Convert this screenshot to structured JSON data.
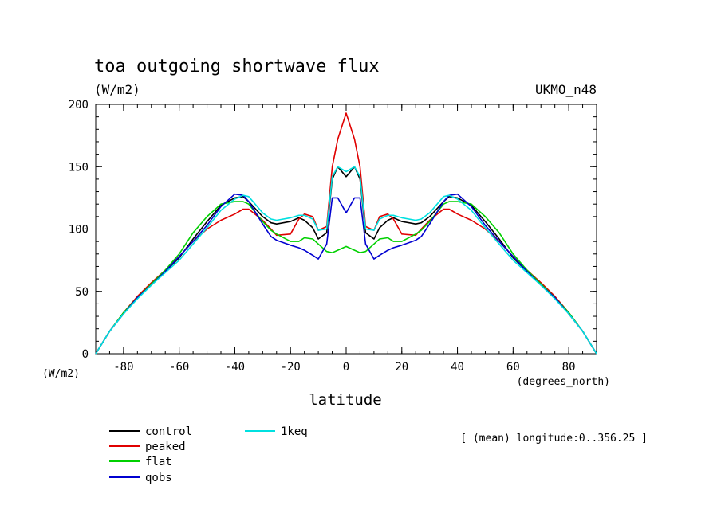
{
  "header": {
    "title": "toa outgoing shortwave flux",
    "units": "(W/m2)",
    "model": "UKMO_n48"
  },
  "footer": {
    "yunit_label": "(W/m2)",
    "xunit_label": "(degrees_north)",
    "xlabel": "latitude",
    "note": "[ (mean) longitude:0..356.25 ]"
  },
  "chart_data": {
    "type": "line",
    "xlabel": "latitude",
    "ylabel": "(W/m2)",
    "xlim": [
      -90,
      90
    ],
    "ylim": [
      0,
      200
    ],
    "xticks": [
      -80,
      -60,
      -40,
      -20,
      0,
      20,
      40,
      60,
      80
    ],
    "yticks": [
      0,
      50,
      100,
      150,
      200
    ],
    "x": [
      -90,
      -85,
      -80,
      -75,
      -70,
      -65,
      -60,
      -55,
      -50,
      -45,
      -40,
      -37,
      -35,
      -30,
      -27,
      -25,
      -20,
      -17,
      -15,
      -12,
      -10,
      -7,
      -5,
      -3,
      0,
      3,
      5,
      7,
      10,
      12,
      15,
      17,
      20,
      25,
      27,
      30,
      35,
      37,
      40,
      45,
      50,
      55,
      60,
      65,
      70,
      75,
      80,
      85,
      90
    ],
    "series": [
      {
        "name": "control",
        "color": "#000000",
        "values": [
          0,
          18,
          32,
          45,
          56,
          66,
          77,
          92,
          106,
          119,
          125,
          126,
          122,
          110,
          105,
          104,
          106,
          109,
          107,
          101,
          92,
          97,
          140,
          150,
          142,
          150,
          140,
          97,
          92,
          101,
          107,
          109,
          106,
          104,
          105,
          110,
          122,
          126,
          125,
          119,
          106,
          92,
          77,
          66,
          56,
          45,
          32,
          18,
          0
        ]
      },
      {
        "name": "peaked",
        "color": "#e00000",
        "values": [
          0,
          18,
          33,
          46,
          57,
          67,
          78,
          90,
          100,
          107,
          112,
          116,
          116,
          107,
          100,
          95,
          96,
          108,
          112,
          110,
          99,
          102,
          150,
          172,
          193,
          172,
          150,
          102,
          99,
          110,
          112,
          108,
          96,
          95,
          100,
          107,
          116,
          116,
          112,
          107,
          100,
          90,
          78,
          67,
          57,
          46,
          33,
          18,
          0
        ]
      },
      {
        "name": "flat",
        "color": "#00d000",
        "values": [
          0,
          18,
          33,
          45,
          56,
          67,
          80,
          97,
          110,
          120,
          122,
          122,
          120,
          106,
          99,
          96,
          90,
          90,
          93,
          92,
          88,
          82,
          81,
          83,
          86,
          83,
          81,
          82,
          88,
          92,
          93,
          90,
          90,
          96,
          99,
          106,
          120,
          122,
          122,
          120,
          110,
          97,
          80,
          67,
          56,
          45,
          33,
          18,
          0
        ]
      },
      {
        "name": "qobs",
        "color": "#0000d0",
        "values": [
          0,
          18,
          32,
          45,
          55,
          66,
          78,
          90,
          103,
          118,
          128,
          127,
          122,
          104,
          94,
          91,
          87,
          85,
          83,
          79,
          76,
          88,
          125,
          125,
          113,
          125,
          125,
          88,
          76,
          79,
          83,
          85,
          87,
          91,
          94,
          104,
          122,
          127,
          128,
          118,
          103,
          90,
          78,
          66,
          55,
          45,
          32,
          18,
          0
        ]
      },
      {
        "name": "1keq",
        "color": "#00e0e0",
        "values": [
          0,
          18,
          32,
          44,
          55,
          65,
          75,
          88,
          101,
          115,
          124,
          127,
          126,
          113,
          108,
          107,
          109,
          111,
          111,
          108,
          99,
          100,
          142,
          150,
          146,
          150,
          142,
          100,
          99,
          108,
          111,
          111,
          109,
          107,
          108,
          113,
          126,
          127,
          124,
          115,
          101,
          88,
          75,
          65,
          55,
          44,
          32,
          18,
          0
        ]
      }
    ]
  }
}
